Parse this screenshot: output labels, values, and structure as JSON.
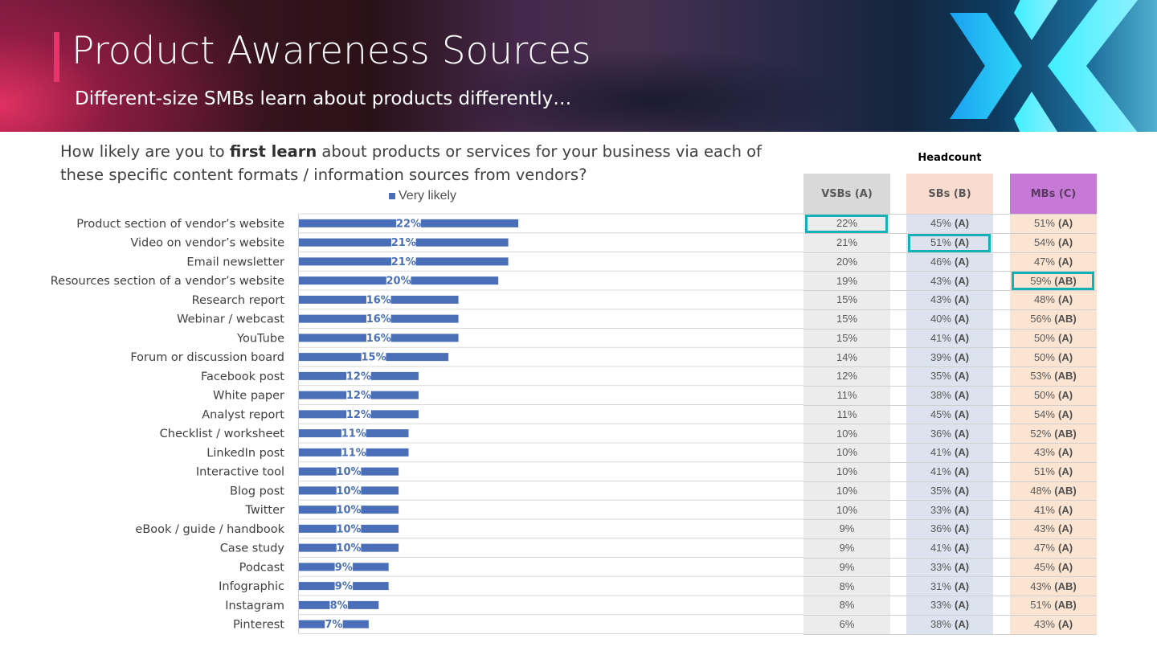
{
  "header": {
    "title": "Product Awareness Sources",
    "subtitle": "Different-size SMBs learn about products differently…",
    "logo_icon": "chevron-x-logo-icon",
    "accent_color": "#e8346b"
  },
  "question": {
    "part1": "How likely are you to ",
    "bold": "first learn",
    "part2": " about products or services for your business via each of these specific content formats / information sources from vendors?"
  },
  "chart_data": {
    "type": "bar",
    "orientation": "horizontal",
    "title": "How likely are you to first learn about products or services for your business via each of these specific content formats / information sources from vendors?",
    "legend": [
      "Very likely"
    ],
    "legend_position": "top",
    "bar_color": "#4a6fb8",
    "xlabel": "",
    "ylabel": "",
    "xlim": [
      0,
      40
    ],
    "grid": "horizontal-separators",
    "categories": [
      "Product section of vendor’s website",
      "Video on vendor’s website",
      "Email newsletter",
      "Resources section of a vendor’s website",
      "Research report",
      "Webinar / webcast",
      "YouTube",
      "Forum or discussion board",
      "Facebook post",
      "White paper",
      "Analyst report",
      "Checklist / worksheet",
      "LinkedIn post",
      "Interactive tool",
      "Blog post",
      "Twitter",
      "eBook / guide / handbook",
      "Case study",
      "Podcast",
      "Infographic",
      "Instagram",
      "Pinterest"
    ],
    "series": [
      {
        "name": "Very likely",
        "values": [
          22,
          21,
          21,
          20,
          16,
          16,
          16,
          15,
          12,
          12,
          12,
          11,
          11,
          10,
          10,
          10,
          10,
          10,
          9,
          9,
          8,
          7
        ],
        "labels": [
          "22%",
          "21%",
          "21%",
          "20%",
          "16%",
          "16%",
          "16%",
          "15%",
          "12%",
          "12%",
          "12%",
          "11%",
          "11%",
          "10%",
          "10%",
          "10%",
          "10%",
          "10%",
          "9%",
          "9%",
          "8%",
          "7%"
        ]
      }
    ]
  },
  "table": {
    "group_label": "Headcount",
    "columns": [
      {
        "key": "a",
        "label": "VSBs (A)",
        "header_color": "#d9d9d9",
        "body_color": "#ececec"
      },
      {
        "key": "b",
        "label": "SBs (B)",
        "header_color": "#fadbd0",
        "body_color": "#dce3ef"
      },
      {
        "key": "c",
        "label": "MBs (C)",
        "header_color": "#c679d6",
        "body_color": "#fbe5d2"
      }
    ],
    "highlight_color": "#14b0b8",
    "rows": [
      {
        "a": {
          "v": "22%",
          "s": "",
          "hl": true
        },
        "b": {
          "v": "45%",
          "s": "(A)"
        },
        "c": {
          "v": "51%",
          "s": "(A)"
        }
      },
      {
        "a": {
          "v": "21%",
          "s": ""
        },
        "b": {
          "v": "51%",
          "s": "(A)",
          "hl": true
        },
        "c": {
          "v": "54%",
          "s": "(A)"
        }
      },
      {
        "a": {
          "v": "20%",
          "s": ""
        },
        "b": {
          "v": "46%",
          "s": "(A)"
        },
        "c": {
          "v": "47%",
          "s": "(A)"
        }
      },
      {
        "a": {
          "v": "19%",
          "s": ""
        },
        "b": {
          "v": "43%",
          "s": "(A)"
        },
        "c": {
          "v": "59%",
          "s": "(AB)",
          "hl": true
        }
      },
      {
        "a": {
          "v": "15%",
          "s": ""
        },
        "b": {
          "v": "43%",
          "s": "(A)"
        },
        "c": {
          "v": "48%",
          "s": "(A)"
        }
      },
      {
        "a": {
          "v": "15%",
          "s": ""
        },
        "b": {
          "v": "40%",
          "s": "(A)"
        },
        "c": {
          "v": "56%",
          "s": "(AB)"
        }
      },
      {
        "a": {
          "v": "15%",
          "s": ""
        },
        "b": {
          "v": "41%",
          "s": "(A)"
        },
        "c": {
          "v": "50%",
          "s": "(A)"
        }
      },
      {
        "a": {
          "v": "14%",
          "s": ""
        },
        "b": {
          "v": "39%",
          "s": "(A)"
        },
        "c": {
          "v": "50%",
          "s": "(A)"
        }
      },
      {
        "a": {
          "v": "12%",
          "s": ""
        },
        "b": {
          "v": "35%",
          "s": "(A)"
        },
        "c": {
          "v": "53%",
          "s": "(AB)"
        }
      },
      {
        "a": {
          "v": "11%",
          "s": ""
        },
        "b": {
          "v": "38%",
          "s": "(A)"
        },
        "c": {
          "v": "50%",
          "s": "(A)"
        }
      },
      {
        "a": {
          "v": "11%",
          "s": ""
        },
        "b": {
          "v": "45%",
          "s": "(A)"
        },
        "c": {
          "v": "54%",
          "s": "(A)"
        }
      },
      {
        "a": {
          "v": "10%",
          "s": ""
        },
        "b": {
          "v": "36%",
          "s": "(A)"
        },
        "c": {
          "v": "52%",
          "s": "(AB)"
        }
      },
      {
        "a": {
          "v": "10%",
          "s": ""
        },
        "b": {
          "v": "41%",
          "s": "(A)"
        },
        "c": {
          "v": "43%",
          "s": "(A)"
        }
      },
      {
        "a": {
          "v": "10%",
          "s": ""
        },
        "b": {
          "v": "41%",
          "s": "(A)"
        },
        "c": {
          "v": "51%",
          "s": "(A)"
        }
      },
      {
        "a": {
          "v": "10%",
          "s": ""
        },
        "b": {
          "v": "35%",
          "s": "(A)"
        },
        "c": {
          "v": "48%",
          "s": "(AB)"
        }
      },
      {
        "a": {
          "v": "10%",
          "s": ""
        },
        "b": {
          "v": "33%",
          "s": "(A)"
        },
        "c": {
          "v": "41%",
          "s": "(A)"
        }
      },
      {
        "a": {
          "v": "9%",
          "s": ""
        },
        "b": {
          "v": "36%",
          "s": "(A)"
        },
        "c": {
          "v": "43%",
          "s": "(A)"
        }
      },
      {
        "a": {
          "v": "9%",
          "s": ""
        },
        "b": {
          "v": "41%",
          "s": "(A)"
        },
        "c": {
          "v": "47%",
          "s": "(A)"
        }
      },
      {
        "a": {
          "v": "9%",
          "s": ""
        },
        "b": {
          "v": "33%",
          "s": "(A)"
        },
        "c": {
          "v": "45%",
          "s": "(A)"
        }
      },
      {
        "a": {
          "v": "8%",
          "s": ""
        },
        "b": {
          "v": "31%",
          "s": "(A)"
        },
        "c": {
          "v": "43%",
          "s": "(AB)"
        }
      },
      {
        "a": {
          "v": "8%",
          "s": ""
        },
        "b": {
          "v": "33%",
          "s": "(A)"
        },
        "c": {
          "v": "51%",
          "s": "(AB)"
        }
      },
      {
        "a": {
          "v": "6%",
          "s": ""
        },
        "b": {
          "v": "38%",
          "s": "(A)"
        },
        "c": {
          "v": "43%",
          "s": "(A)"
        }
      }
    ]
  }
}
